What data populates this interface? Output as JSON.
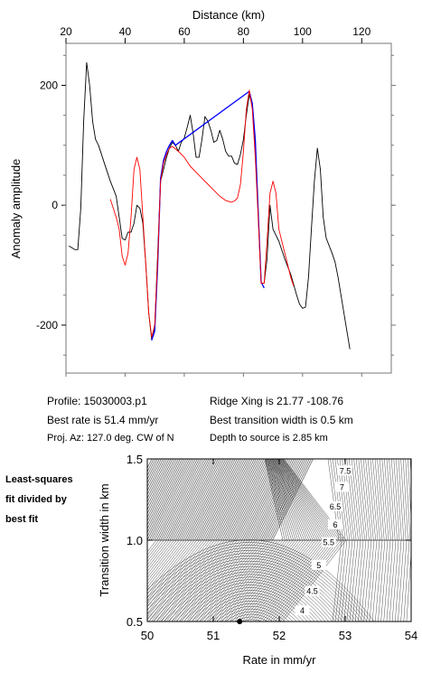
{
  "chart_data": [
    {
      "type": "line",
      "xlabel_top": "Distance (km)",
      "ylabel": "Anomaly amplitude",
      "xlim": [
        20,
        130
      ],
      "ylim": [
        -280,
        270
      ],
      "x_ticks": [
        20,
        40,
        60,
        80,
        100,
        120
      ],
      "y_ticks": [
        200,
        0,
        -200
      ],
      "series": [
        {
          "color": "#000000",
          "points": [
            [
              21,
              -68
            ],
            [
              23,
              -74
            ],
            [
              24,
              -74
            ],
            [
              25,
              -5
            ],
            [
              26,
              140
            ],
            [
              27,
              238
            ],
            [
              28,
              200
            ],
            [
              29,
              140
            ],
            [
              30,
              110
            ],
            [
              31,
              100
            ],
            [
              32,
              85
            ],
            [
              33,
              70
            ],
            [
              34,
              55
            ],
            [
              35,
              40
            ],
            [
              37,
              15
            ],
            [
              38,
              -20
            ],
            [
              39,
              -55
            ],
            [
              40,
              -58
            ],
            [
              41,
              -45
            ],
            [
              42,
              -45
            ],
            [
              43,
              -30
            ],
            [
              44,
              0
            ],
            [
              45,
              -5
            ],
            [
              46,
              -30
            ],
            [
              47,
              -100
            ],
            [
              48,
              -180
            ],
            [
              49,
              -225
            ],
            [
              50,
              -205
            ],
            [
              51,
              -80
            ],
            [
              52,
              40
            ],
            [
              53,
              60
            ],
            [
              54,
              80
            ],
            [
              55,
              95
            ],
            [
              56,
              105
            ],
            [
              57,
              100
            ],
            [
              58,
              90
            ],
            [
              59,
              105
            ],
            [
              60,
              112
            ],
            [
              61,
              130
            ],
            [
              62,
              150
            ],
            [
              63,
              120
            ],
            [
              64,
              80
            ],
            [
              65,
              80
            ],
            [
              66,
              110
            ],
            [
              67,
              148
            ],
            [
              68,
              140
            ],
            [
              69,
              125
            ],
            [
              70,
              105
            ],
            [
              71,
              108
            ],
            [
              72,
              125
            ],
            [
              73,
              110
            ],
            [
              74,
              90
            ],
            [
              75,
              82
            ],
            [
              76,
              82
            ],
            [
              77,
              70
            ],
            [
              78,
              68
            ],
            [
              79,
              85
            ],
            [
              80,
              110
            ],
            [
              81,
              150
            ],
            [
              82,
              185
            ],
            [
              83,
              165
            ],
            [
              84,
              100
            ],
            [
              85,
              -10
            ],
            [
              86,
              -130
            ],
            [
              87,
              -130
            ],
            [
              88,
              -90
            ],
            [
              89,
              0
            ],
            [
              90,
              -40
            ],
            [
              91,
              -50
            ],
            [
              92,
              -60
            ],
            [
              94,
              -90
            ],
            [
              96,
              -115
            ],
            [
              98,
              -150
            ],
            [
              99,
              -165
            ],
            [
              100,
              -172
            ],
            [
              101,
              -170
            ],
            [
              102,
              -120
            ],
            [
              103,
              -40
            ],
            [
              104,
              40
            ],
            [
              105,
              95
            ],
            [
              106,
              60
            ],
            [
              107,
              -20
            ],
            [
              108,
              -55
            ],
            [
              110,
              -80
            ],
            [
              111,
              -95
            ],
            [
              112,
              -120
            ],
            [
              114,
              -180
            ],
            [
              116,
              -240
            ]
          ]
        },
        {
          "color": "#0000ff",
          "points": [
            [
              49,
              -225
            ],
            [
              50,
              -210
            ],
            [
              51,
              -100
            ],
            [
              52,
              45
            ],
            [
              53,
              75
            ],
            [
              54,
              90
            ],
            [
              55,
              100
            ],
            [
              56,
              108
            ],
            [
              57,
              100
            ],
            [
              82,
              190
            ],
            [
              83,
              170
            ],
            [
              84,
              110
            ],
            [
              85,
              -10
            ],
            [
              86,
              -128
            ],
            [
              87,
              -138
            ]
          ]
        },
        {
          "color": "#ff0000",
          "points": [
            [
              35,
              10
            ],
            [
              37,
              -20
            ],
            [
              38,
              -40
            ],
            [
              39,
              -85
            ],
            [
              40,
              -100
            ],
            [
              41,
              -80
            ],
            [
              42,
              -20
            ],
            [
              43,
              60
            ],
            [
              44,
              80
            ],
            [
              45,
              60
            ],
            [
              46,
              -20
            ],
            [
              47,
              -100
            ],
            [
              48,
              -180
            ],
            [
              49,
              -220
            ],
            [
              50,
              -200
            ],
            [
              51,
              -90
            ],
            [
              52,
              40
            ],
            [
              53,
              70
            ],
            [
              54,
              85
            ],
            [
              55,
              95
            ],
            [
              56,
              98
            ],
            [
              58,
              90
            ],
            [
              60,
              80
            ],
            [
              62,
              65
            ],
            [
              64,
              55
            ],
            [
              66,
              45
            ],
            [
              68,
              35
            ],
            [
              70,
              25
            ],
            [
              72,
              15
            ],
            [
              74,
              8
            ],
            [
              76,
              5
            ],
            [
              77,
              7
            ],
            [
              78,
              12
            ],
            [
              79,
              35
            ],
            [
              80,
              90
            ],
            [
              81,
              160
            ],
            [
              82,
              192
            ],
            [
              83,
              160
            ],
            [
              84,
              80
            ],
            [
              85,
              -20
            ],
            [
              86,
              -130
            ],
            [
              87,
              -130
            ],
            [
              88,
              -60
            ],
            [
              89,
              20
            ],
            [
              90,
              40
            ],
            [
              91,
              20
            ],
            [
              92,
              -40
            ],
            [
              93,
              -60
            ],
            [
              94,
              -80
            ],
            [
              95,
              -100
            ],
            [
              96,
              -120
            ],
            [
              97,
              -135
            ]
          ]
        }
      ]
    },
    {
      "type": "heatmap",
      "xlabel": "Rate in mm/yr",
      "ylabel": "Transition width in km",
      "xlim": [
        50,
        54
      ],
      "ylim": [
        0.5,
        1.5
      ],
      "x_ticks": [
        "50",
        "51",
        "52",
        "53",
        "54"
      ],
      "y_ticks": [
        "1.5",
        "1.0",
        "0.5"
      ],
      "contour_labels": [
        "7.5",
        "7",
        "6.5",
        "6",
        "5.5",
        "5",
        "4.5",
        "4"
      ],
      "best_fit_marker": [
        51.4,
        0.5
      ]
    }
  ],
  "info": {
    "profile": "Profile: 15030003.p1",
    "best_rate": "Best rate is 51.4 mm/yr",
    "proj_az": "Proj. Az: 127.0 deg. CW of N",
    "ridge_xing": "Ridge Xing is 21.77 -108.76",
    "best_width": "Best transition width is 0.5 km",
    "depth": "Depth to source is   2.85 km"
  },
  "side_label": [
    "Least-squares",
    "fit divided by",
    "best fit"
  ]
}
